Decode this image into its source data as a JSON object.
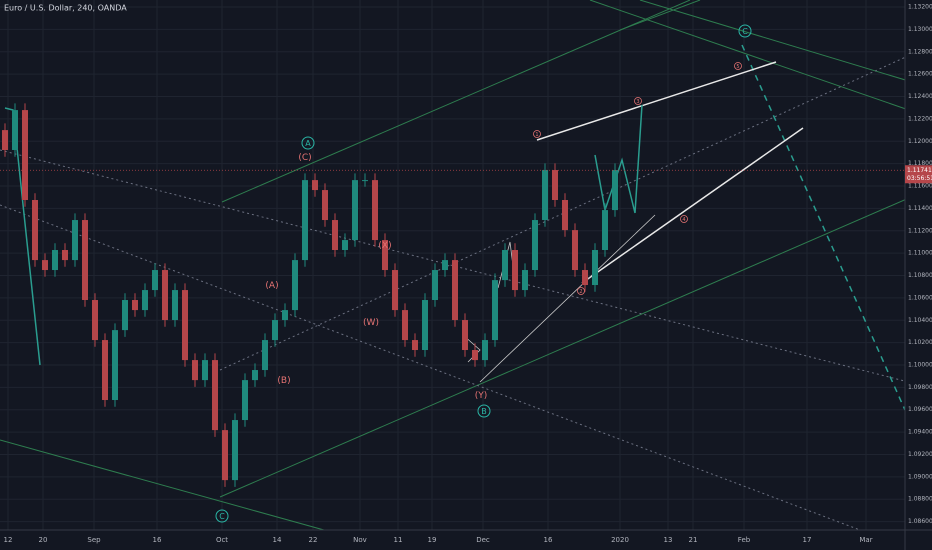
{
  "chart_data": {
    "type": "candlestick",
    "title": "Euro / U.S. Dollar, 240, OANDA",
    "up_color": "#1f8a7d",
    "down_color": "#b5464a",
    "candles": [
      [
        1.121,
        1.1216,
        1.11862,
        1.11922
      ],
      [
        1.11922,
        1.12339,
        1.11862,
        1.12279
      ],
      [
        1.12279,
        1.12339,
        1.11415,
        1.11475
      ],
      [
        1.11475,
        1.11535,
        1.10878,
        1.10938
      ],
      [
        1.10938,
        1.10998,
        1.10789,
        1.10849
      ],
      [
        1.10849,
        1.11088,
        1.10789,
        1.11028
      ],
      [
        1.11028,
        1.11088,
        1.10878,
        1.10938
      ],
      [
        1.10938,
        1.11356,
        1.10878,
        1.11296
      ],
      [
        1.11296,
        1.11356,
        1.10521,
        1.10581
      ],
      [
        1.10581,
        1.10641,
        1.10163,
        1.10223
      ],
      [
        1.10223,
        1.10283,
        1.09627,
        1.09687
      ],
      [
        1.09687,
        1.10372,
        1.09627,
        1.10312
      ],
      [
        1.10312,
        1.10641,
        1.10252,
        1.10581
      ],
      [
        1.10581,
        1.10641,
        1.10431,
        1.10491
      ],
      [
        1.10491,
        1.1073,
        1.10431,
        1.1067
      ],
      [
        1.1067,
        1.10909,
        1.1061,
        1.10849
      ],
      [
        1.10849,
        1.10909,
        1.10342,
        1.10402
      ],
      [
        1.10402,
        1.1073,
        1.10342,
        1.1067
      ],
      [
        1.1067,
        1.1073,
        1.09984,
        1.10044
      ],
      [
        1.10044,
        1.10104,
        1.09805,
        1.09865
      ],
      [
        1.09865,
        1.10104,
        1.09805,
        1.10044
      ],
      [
        1.10044,
        1.10104,
        1.09358,
        1.09418
      ],
      [
        1.09418,
        1.09478,
        1.08911,
        1.08971
      ],
      [
        1.08971,
        1.09568,
        1.08911,
        1.09508
      ],
      [
        1.09508,
        1.09925,
        1.09448,
        1.09865
      ],
      [
        1.09865,
        1.10015,
        1.09805,
        1.09955
      ],
      [
        1.09955,
        1.10283,
        1.09895,
        1.10223
      ],
      [
        1.10223,
        1.10462,
        1.10163,
        1.10402
      ],
      [
        1.10402,
        1.10551,
        1.10342,
        1.10491
      ],
      [
        1.10491,
        1.10998,
        1.10431,
        1.10938
      ],
      [
        1.10938,
        1.11713,
        1.10878,
        1.11653
      ],
      [
        1.11653,
        1.11713,
        1.11504,
        1.11564
      ],
      [
        1.11564,
        1.11624,
        1.11236,
        1.11296
      ],
      [
        1.11296,
        1.11356,
        1.10968,
        1.11028
      ],
      [
        1.11028,
        1.11177,
        1.10968,
        1.11117
      ],
      [
        1.11117,
        1.11713,
        1.11057,
        1.11653
      ],
      [
        1.11653,
        1.11713,
        1.11593,
        1.11653
      ],
      [
        1.11653,
        1.11713,
        1.11057,
        1.11117
      ],
      [
        1.11117,
        1.11177,
        1.10789,
        1.10849
      ],
      [
        1.10849,
        1.10909,
        1.10431,
        1.10491
      ],
      [
        1.10491,
        1.10551,
        1.10163,
        1.10223
      ],
      [
        1.10223,
        1.10283,
        1.10074,
        1.10134
      ],
      [
        1.10134,
        1.10641,
        1.10074,
        1.10581
      ],
      [
        1.10581,
        1.10909,
        1.10521,
        1.10849
      ],
      [
        1.10849,
        1.10998,
        1.10789,
        1.10938
      ],
      [
        1.10938,
        1.10998,
        1.10342,
        1.10402
      ],
      [
        1.10402,
        1.10462,
        1.10074,
        1.10134
      ],
      [
        1.10134,
        1.10194,
        1.09984,
        1.10044
      ],
      [
        1.10044,
        1.10283,
        1.09984,
        1.10223
      ],
      [
        1.10223,
        1.10819,
        1.10163,
        1.10759
      ],
      [
        1.10759,
        1.11088,
        1.10699,
        1.11028
      ],
      [
        1.11028,
        1.11088,
        1.1061,
        1.1067
      ],
      [
        1.1067,
        1.10909,
        1.1061,
        1.10849
      ],
      [
        1.10849,
        1.11356,
        1.10789,
        1.11296
      ],
      [
        1.11296,
        1.11803,
        1.11236,
        1.11743
      ],
      [
        1.11743,
        1.11803,
        1.11415,
        1.11475
      ],
      [
        1.11475,
        1.11535,
        1.11146,
        1.11206
      ],
      [
        1.11206,
        1.11266,
        1.10789,
        1.10849
      ],
      [
        1.10849,
        1.10909,
        1.10655,
        1.10715
      ],
      [
        1.10715,
        1.11088,
        1.10655,
        1.11028
      ],
      [
        1.11028,
        1.11445,
        1.10968,
        1.11385
      ],
      [
        1.11385,
        1.11803,
        1.11325,
        1.11743
      ]
    ],
    "xlim": [
      0,
      90.5
    ],
    "xticks": [
      {
        "value": 0.8,
        "label": "12"
      },
      {
        "value": 4.3,
        "label": "20"
      },
      {
        "value": 9.4,
        "label": "Sep"
      },
      {
        "value": 15.7,
        "label": "16"
      },
      {
        "value": 22.2,
        "label": "Oct"
      },
      {
        "value": 27.7,
        "label": "14"
      },
      {
        "value": 31.3,
        "label": "22"
      },
      {
        "value": 36,
        "label": "Nov"
      },
      {
        "value": 39.8,
        "label": "11"
      },
      {
        "value": 43.2,
        "label": "19"
      },
      {
        "value": 48.3,
        "label": "Dec"
      },
      {
        "value": 54.8,
        "label": "16"
      },
      {
        "value": 62,
        "label": "2020"
      },
      {
        "value": 66.8,
        "label": "13"
      },
      {
        "value": 69.3,
        "label": "21"
      },
      {
        "value": 74.4,
        "label": "Feb"
      },
      {
        "value": 80.7,
        "label": "17"
      },
      {
        "value": 86.6,
        "label": "Mar"
      }
    ],
    "ylim": [
      1.08525,
      1.13263
    ],
    "yticks": [
      {
        "value": 1.086,
        "label": "1.08600"
      },
      {
        "value": 1.088,
        "label": "1.08800"
      },
      {
        "value": 1.09,
        "label": "1.09000"
      },
      {
        "value": 1.092,
        "label": "1.09200"
      },
      {
        "value": 1.094,
        "label": "1.09400"
      },
      {
        "value": 1.096,
        "label": "1.09600"
      },
      {
        "value": 1.098,
        "label": "1.09800"
      },
      {
        "value": 1.1,
        "label": "1.10000"
      },
      {
        "value": 1.102,
        "label": "1.10200"
      },
      {
        "value": 1.104,
        "label": "1.10400"
      },
      {
        "value": 1.106,
        "label": "1.10600"
      },
      {
        "value": 1.108,
        "label": "1.10800"
      },
      {
        "value": 1.11,
        "label": "1.11000"
      },
      {
        "value": 1.112,
        "label": "1.11200"
      },
      {
        "value": 1.114,
        "label": "1.11400"
      },
      {
        "value": 1.116,
        "label": "1.11600"
      },
      {
        "value": 1.118,
        "label": "1.11800"
      },
      {
        "value": 1.12,
        "label": "1.12000"
      },
      {
        "value": 1.122,
        "label": "1.12200"
      },
      {
        "value": 1.124,
        "label": "1.12400"
      },
      {
        "value": 1.126,
        "label": "1.12600"
      },
      {
        "value": 1.128,
        "label": "1.12800"
      },
      {
        "value": 1.13,
        "label": "1.13000"
      },
      {
        "value": 1.132,
        "label": "1.13200"
      }
    ],
    "grid": true,
    "last_price": 1.11741,
    "last_price_label": "1.11741",
    "countdown": "03:56:51",
    "annotations": [
      "A",
      "(C)",
      "(A)",
      "(B)",
      "(W)",
      "(X)",
      "(Y)",
      "B",
      "C",
      "C",
      "1",
      "2",
      "3",
      "4",
      "5"
    ]
  }
}
